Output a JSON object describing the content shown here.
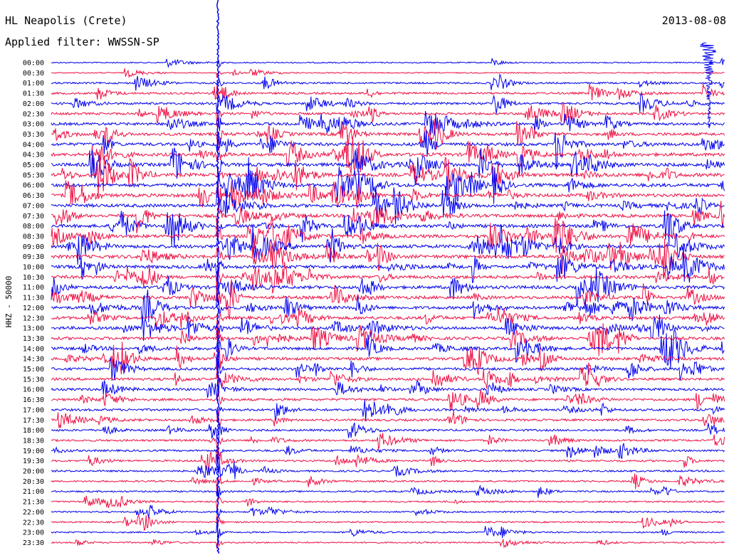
{
  "header": {
    "station": "HL Neapolis (Crete)",
    "filter": "Applied filter: WWSSN-SP",
    "date": "2013-08-08"
  },
  "chart_data": {
    "type": "line",
    "title": "HL Neapolis (Crete)",
    "subtitle": "Applied filter: WWSSN-SP",
    "date": "2013-08-08",
    "ylabel": "HHZ - 50000",
    "xlabel": "",
    "row_labels": [
      "00:00",
      "00:30",
      "01:00",
      "01:30",
      "02:00",
      "02:30",
      "03:00",
      "03:30",
      "04:00",
      "04:30",
      "05:00",
      "05:30",
      "06:00",
      "06:30",
      "07:00",
      "07:30",
      "08:00",
      "08:30",
      "09:00",
      "09:30",
      "10:00",
      "10:30",
      "11:00",
      "11:30",
      "12:00",
      "12:30",
      "13:00",
      "13:30",
      "14:00",
      "14:30",
      "15:00",
      "15:30",
      "16:00",
      "16:30",
      "17:00",
      "17:30",
      "18:00",
      "18:30",
      "19:00",
      "19:30",
      "20:00",
      "20:30",
      "21:00",
      "21:30",
      "22:00",
      "22:30",
      "23:00",
      "23:30"
    ],
    "row_activity": [
      0.12,
      0.1,
      0.35,
      0.45,
      0.5,
      0.55,
      0.7,
      0.8,
      0.85,
      0.9,
      0.95,
      0.95,
      0.95,
      0.92,
      0.9,
      0.88,
      0.9,
      0.92,
      0.95,
      0.95,
      0.9,
      0.88,
      0.85,
      0.82,
      0.8,
      0.8,
      0.8,
      0.78,
      0.78,
      0.75,
      0.7,
      0.65,
      0.6,
      0.58,
      0.55,
      0.5,
      0.45,
      0.42,
      0.4,
      0.38,
      0.35,
      0.3,
      0.28,
      0.28,
      0.25,
      0.22,
      0.22,
      0.2
    ],
    "series_colors": [
      "#0000ee",
      "#ee1144"
    ],
    "grid": false
  }
}
